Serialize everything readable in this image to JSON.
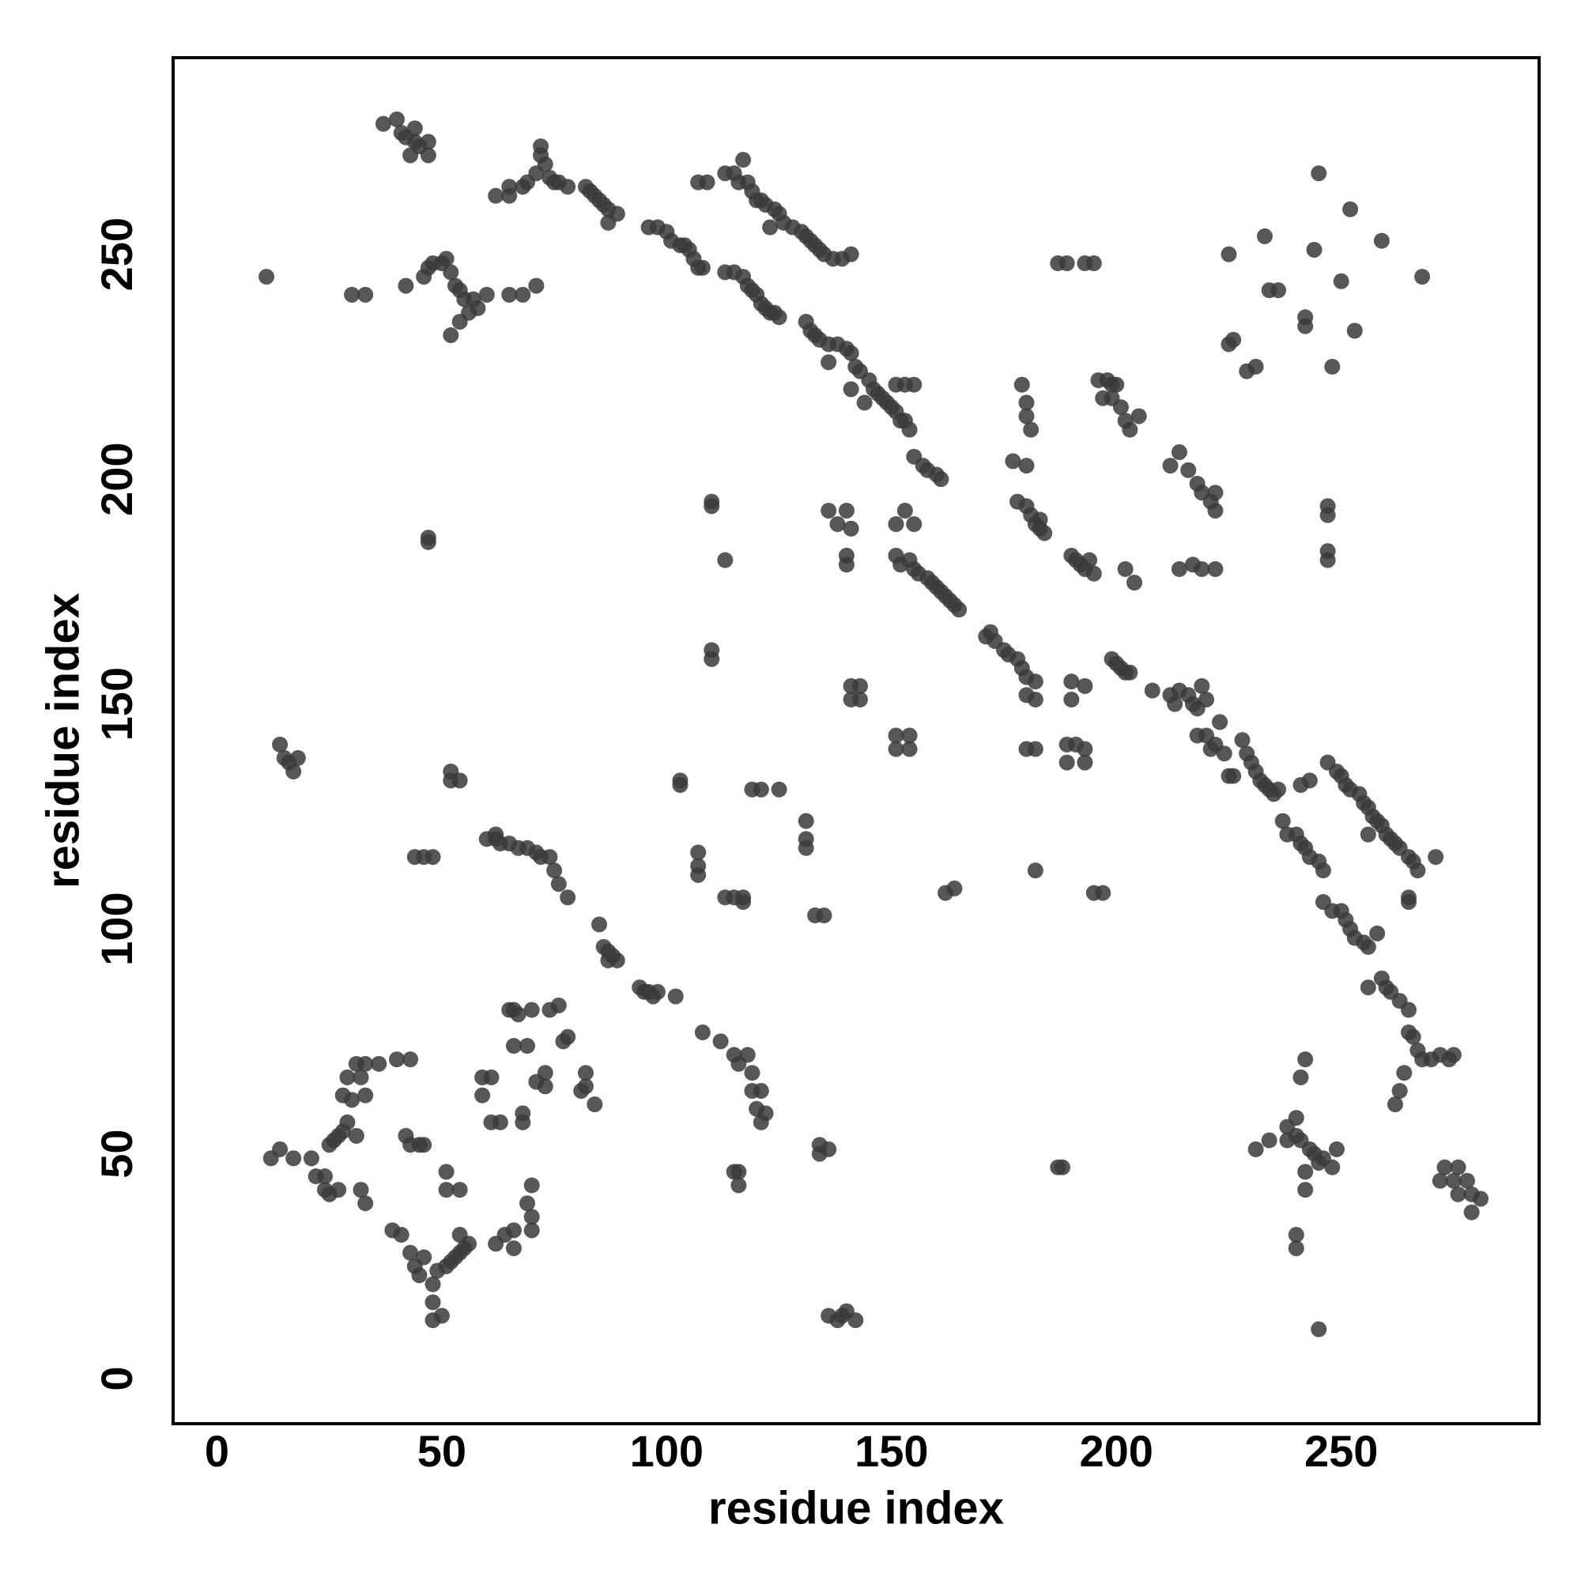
{
  "chart_data": {
    "type": "scatter",
    "xlabel": "residue index",
    "ylabel": "residue index",
    "xlim": [
      -9.75,
      294
    ],
    "ylim": [
      -10,
      293.7
    ],
    "xticks": [
      0,
      50,
      100,
      150,
      200,
      250
    ],
    "yticks": [
      0,
      50,
      100,
      150,
      200,
      250
    ],
    "color": "#3a3a3a",
    "x": [
      37,
      40,
      41,
      42,
      44,
      44,
      45,
      47,
      47,
      43,
      62,
      65,
      65,
      68,
      69,
      71,
      72,
      72,
      73,
      74,
      75,
      76,
      78,
      82,
      83,
      84,
      85,
      86,
      87,
      87,
      89,
      96,
      98,
      100,
      101,
      103,
      104,
      105,
      106,
      107,
      108,
      107,
      109,
      113,
      115,
      116,
      117,
      118,
      119,
      120,
      121,
      122,
      123,
      124,
      125,
      126,
      128,
      130,
      131,
      132,
      133,
      134,
      135,
      137,
      139,
      141,
      113,
      115,
      117,
      118,
      119,
      120,
      121,
      122,
      123,
      124,
      125,
      131,
      132,
      133,
      134,
      136,
      138,
      140,
      141,
      142,
      143,
      145,
      146,
      147,
      148,
      149,
      150,
      151,
      152,
      153,
      154,
      155,
      153,
      151,
      136,
      141,
      144,
      11,
      30,
      33,
      42,
      46,
      47,
      48,
      50,
      51,
      52,
      53,
      54,
      55,
      57,
      58,
      60,
      56,
      54,
      52,
      65,
      68,
      71,
      179,
      180,
      180,
      181,
      187,
      189,
      193,
      195,
      196,
      198,
      199,
      200,
      197,
      199,
      201,
      202,
      203,
      205,
      177,
      180,
      178,
      180,
      181,
      182,
      183,
      184,
      183,
      190,
      191,
      192,
      193,
      194,
      195,
      202,
      204,
      212,
      214,
      216,
      218,
      219,
      221,
      222,
      222,
      214,
      217,
      219,
      222,
      225,
      233,
      234,
      236,
      244,
      245,
      252,
      259,
      268,
      250,
      242,
      242,
      248,
      253,
      225,
      226,
      229,
      231,
      247,
      247,
      247,
      247,
      155,
      157,
      158,
      160,
      161,
      151,
      152,
      154,
      155,
      156,
      158,
      159,
      160,
      161,
      162,
      163,
      164,
      165,
      153,
      155,
      151,
      171,
      172,
      173,
      175,
      176,
      178,
      179,
      180,
      182,
      180,
      182,
      136,
      138,
      140,
      141,
      140,
      140,
      141,
      143,
      141,
      143,
      151,
      151,
      154,
      154,
      180,
      182,
      189,
      189,
      191,
      193,
      193,
      190,
      190,
      193,
      182,
      199,
      200,
      201,
      202,
      203,
      208,
      212,
      213,
      214,
      216,
      217,
      218,
      219,
      220,
      218,
      220,
      221,
      222,
      223,
      224,
      225,
      226,
      228,
      229,
      230,
      231,
      232,
      233,
      234,
      235,
      236,
      237,
      238,
      240,
      241,
      242,
      243,
      245,
      246,
      241,
      243,
      247,
      249,
      250,
      251,
      252,
      254,
      255,
      256,
      257,
      258,
      259,
      260,
      261,
      262,
      263,
      265,
      266,
      267,
      271,
      256,
      265,
      265,
      246,
      248,
      250,
      251,
      252,
      253,
      255,
      256,
      258,
      256,
      259,
      260,
      261,
      263,
      265,
      265,
      266,
      267,
      268,
      270,
      272,
      274,
      275,
      264,
      263,
      262,
      273,
      275,
      276,
      278,
      279,
      279,
      281,
      272,
      276,
      241,
      242,
      240,
      238,
      238,
      240,
      241,
      243,
      244,
      245,
      246,
      249,
      248,
      242,
      242,
      240,
      240,
      245,
      234,
      231,
      12,
      14,
      17,
      21,
      22,
      24,
      24,
      25,
      26,
      27,
      28,
      29,
      28,
      30,
      29,
      31,
      32,
      33,
      33,
      36,
      40,
      43,
      31,
      32,
      33,
      25,
      27,
      39,
      41,
      43,
      44,
      45,
      46,
      48,
      48,
      48,
      49,
      50,
      51,
      52,
      53,
      54,
      55,
      56,
      54,
      51,
      51,
      54,
      42,
      43,
      45,
      46,
      59,
      61,
      59,
      61,
      63,
      65,
      66,
      67,
      68,
      68,
      66,
      69,
      70,
      71,
      73,
      73,
      74,
      76,
      69,
      70,
      70,
      70,
      66,
      64,
      62,
      66,
      77,
      78,
      82,
      82,
      84,
      81,
      85,
      86,
      87,
      88,
      89,
      87,
      94,
      95,
      96,
      97,
      98,
      102,
      108,
      112,
      115,
      116,
      118,
      119,
      119,
      121,
      120,
      121,
      122,
      116,
      116,
      115,
      60,
      62,
      63,
      65,
      67,
      69,
      71,
      72,
      74,
      75,
      76,
      78,
      48,
      46,
      44,
      52,
      52,
      54,
      14,
      15,
      16,
      17,
      18,
      47,
      47,
      110,
      110,
      110,
      110,
      103,
      103,
      107,
      107,
      107,
      113,
      115,
      117,
      117,
      119,
      121,
      125,
      131,
      131,
      131,
      133,
      135,
      134,
      134,
      136,
      136,
      138,
      139,
      140,
      142,
      162,
      164,
      187,
      188,
      195,
      197,
      113,
      62
    ],
    "values": [
      279,
      280,
      277,
      276,
      278,
      275,
      274,
      275,
      272,
      272,
      263,
      263,
      265,
      265,
      266,
      268,
      272,
      274,
      270,
      267,
      266,
      266,
      265,
      265,
      264,
      263,
      262,
      261,
      260,
      257,
      259,
      256,
      256,
      255,
      253,
      252,
      252,
      251,
      249,
      247,
      247,
      266,
      266,
      268,
      268,
      266,
      271,
      266,
      264,
      262,
      262,
      261,
      256,
      260,
      259,
      257,
      256,
      255,
      254,
      253,
      252,
      251,
      250,
      249,
      249,
      250,
      246,
      246,
      245,
      243,
      242,
      241,
      239,
      238,
      237,
      237,
      236,
      235,
      233,
      232,
      231,
      230,
      230,
      229,
      228,
      225,
      224,
      222,
      220,
      219,
      218,
      217,
      216,
      215,
      213,
      213,
      211,
      221,
      221,
      221,
      226,
      220,
      217,
      245,
      241,
      241,
      243,
      245,
      247,
      248,
      248,
      249,
      246,
      243,
      242,
      240,
      240,
      238,
      241,
      237,
      235,
      232,
      241,
      241,
      243,
      221,
      217,
      214,
      211,
      248,
      248,
      248,
      248,
      222,
      222,
      221,
      221,
      218,
      218,
      216,
      213,
      211,
      214,
      204,
      203,
      195,
      194,
      192,
      190,
      189,
      188,
      191,
      183,
      182,
      181,
      180,
      182,
      179,
      180,
      177,
      203,
      206,
      202,
      199,
      197,
      195,
      197,
      193,
      180,
      181,
      180,
      180,
      250,
      254,
      242,
      242,
      251,
      268,
      260,
      253,
      245,
      244,
      236,
      234,
      225,
      233,
      230,
      231,
      224,
      225,
      194,
      192,
      184,
      182,
      205,
      203,
      202,
      201,
      200,
      183,
      181,
      182,
      180,
      179,
      178,
      177,
      176,
      175,
      174,
      173,
      172,
      171,
      193,
      190,
      190,
      165,
      166,
      164,
      162,
      161,
      160,
      158,
      156,
      155,
      152,
      151,
      193,
      190,
      193,
      189,
      183,
      181,
      154,
      154,
      151,
      151,
      143,
      140,
      143,
      140,
      140,
      140,
      141,
      137,
      141,
      140,
      137,
      151,
      155,
      154,
      113,
      160,
      159,
      158,
      157,
      157,
      153,
      152,
      150,
      153,
      152,
      150,
      149,
      154,
      151,
      143,
      143,
      140,
      141,
      146,
      139,
      134,
      134,
      142,
      139,
      137,
      135,
      133,
      132,
      131,
      130,
      131,
      124,
      121,
      121,
      119,
      118,
      116,
      115,
      113,
      132,
      133,
      137,
      135,
      134,
      132,
      131,
      130,
      128,
      127,
      125,
      124,
      123,
      121,
      120,
      119,
      118,
      116,
      115,
      113,
      116,
      121,
      107,
      106,
      106,
      104,
      104,
      102,
      100,
      98,
      97,
      96,
      99,
      87,
      89,
      87,
      86,
      84,
      82,
      77,
      76,
      73,
      71,
      71,
      72,
      71,
      72,
      68,
      64,
      61,
      47,
      44,
      47,
      44,
      41,
      37,
      40,
      44,
      41,
      67,
      71,
      58,
      56,
      53,
      54,
      53,
      51,
      50,
      48,
      49,
      51,
      47,
      46,
      42,
      32,
      29,
      11,
      53,
      51,
      49,
      51,
      49,
      49,
      45,
      45,
      42,
      52,
      53,
      54,
      55,
      57,
      63,
      62,
      67,
      70,
      67,
      70,
      63,
      70,
      71,
      71,
      54,
      42,
      39,
      41,
      42,
      33,
      32,
      28,
      25,
      23,
      27,
      21,
      17,
      13,
      24,
      14,
      25,
      26,
      27,
      28,
      29,
      30,
      32,
      42,
      46,
      42,
      54,
      52,
      52,
      52,
      67,
      67,
      63,
      57,
      57,
      82,
      82,
      81,
      59,
      57,
      74,
      74,
      82,
      66,
      68,
      65,
      82,
      83,
      39,
      36,
      43,
      33,
      33,
      32,
      30,
      29,
      75,
      76,
      65,
      68,
      61,
      64,
      101,
      96,
      95,
      94,
      93,
      93,
      87,
      86,
      86,
      85,
      86,
      85,
      77,
      75,
      72,
      70,
      72,
      68,
      64,
      64,
      60,
      57,
      59,
      46,
      43,
      46,
      120,
      120,
      119,
      119,
      118,
      118,
      117,
      116,
      116,
      113,
      110,
      107,
      116,
      116,
      116,
      135,
      133,
      133,
      141,
      138,
      137,
      135,
      138,
      187,
      186,
      195,
      194,
      162,
      160,
      133,
      132,
      117,
      114,
      112,
      107,
      107,
      107,
      106,
      131,
      131,
      131,
      124,
      120,
      118,
      103,
      103,
      52,
      50,
      51,
      14,
      13,
      14,
      15,
      13,
      108,
      109,
      47,
      47,
      108,
      108,
      182,
      121
    ]
  }
}
